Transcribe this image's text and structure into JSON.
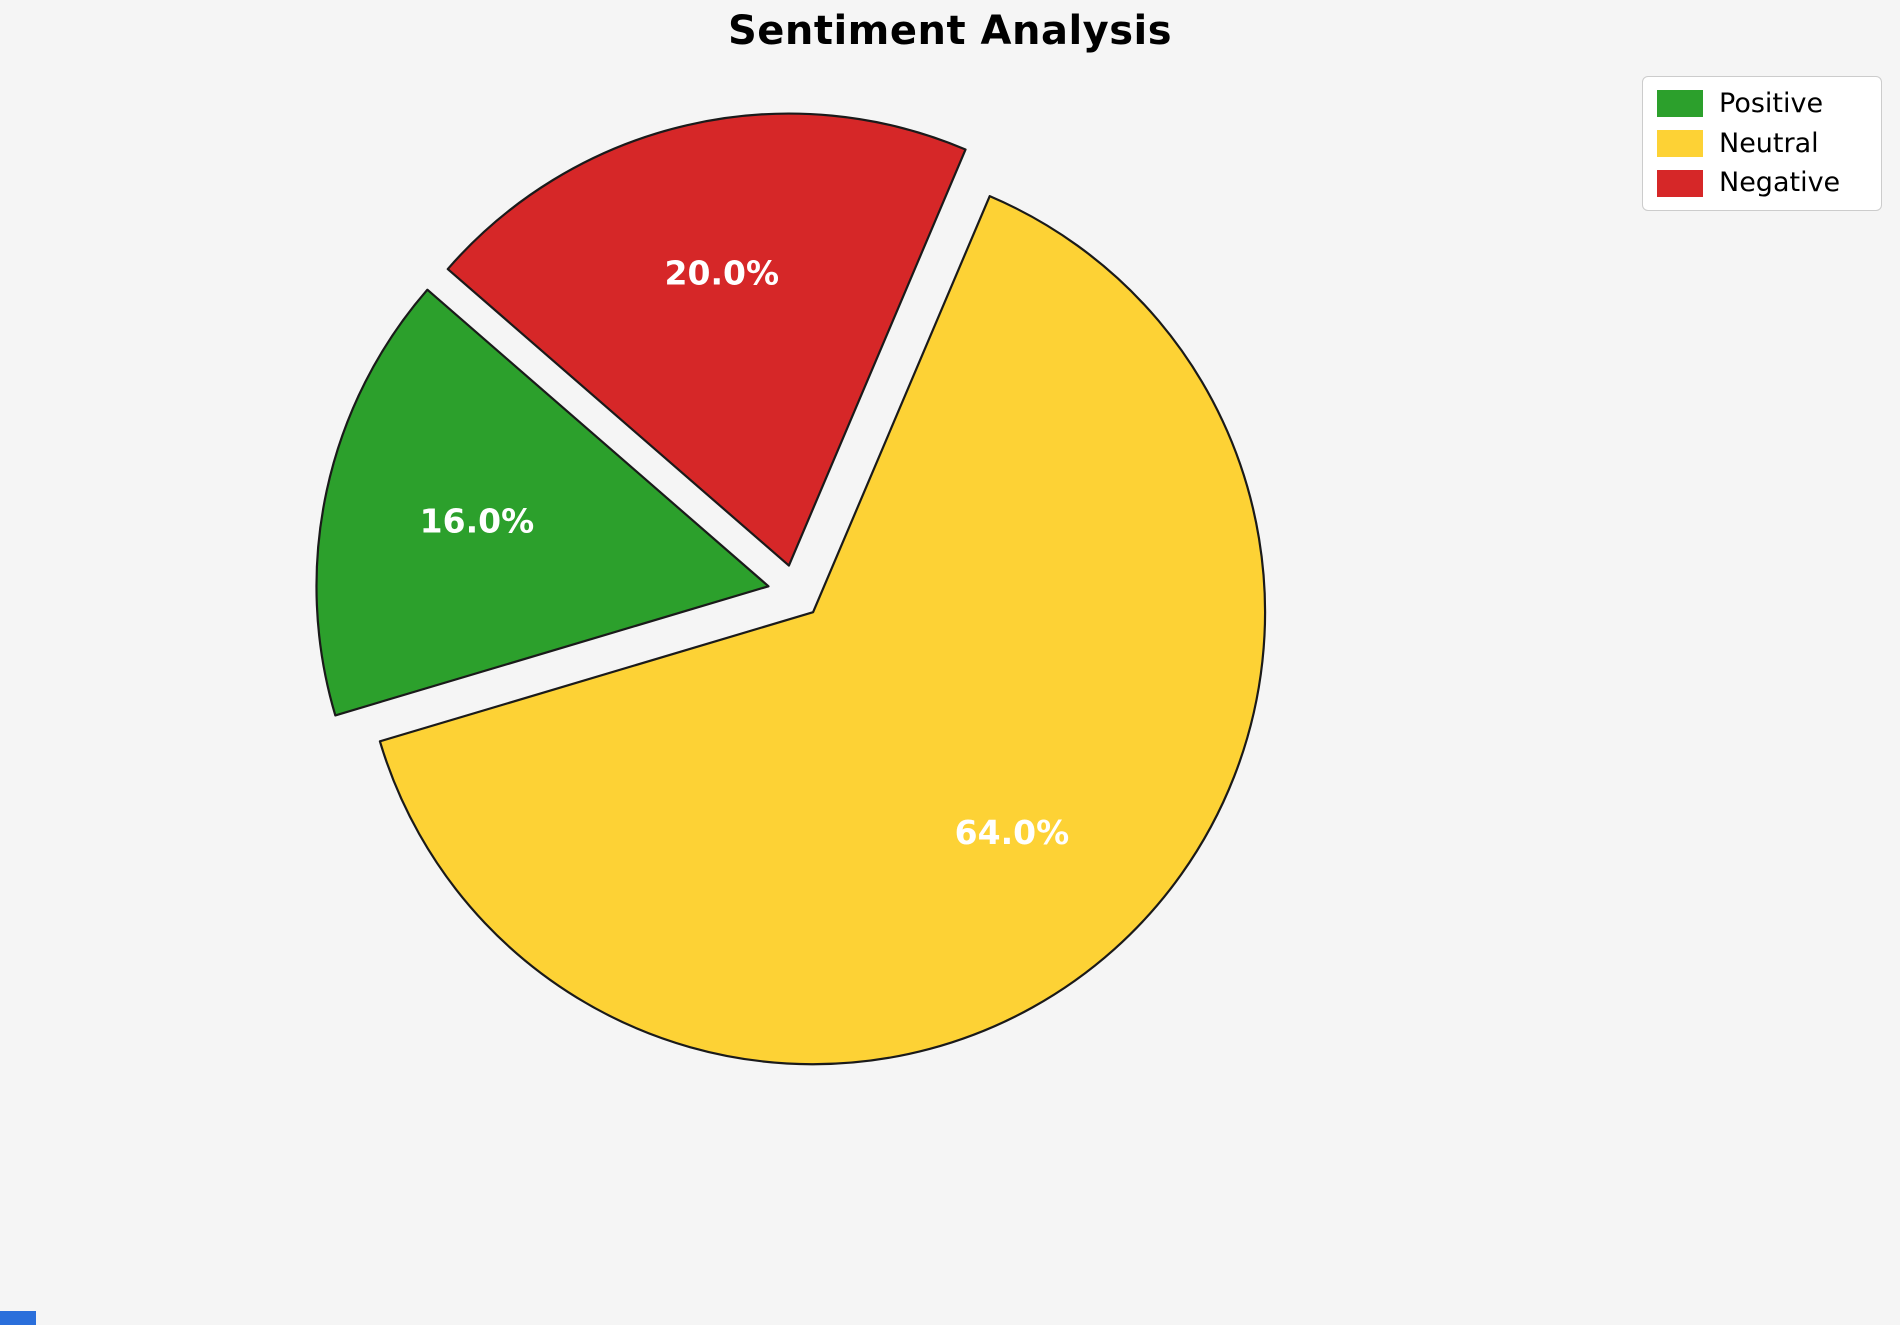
{
  "chart_data": {
    "type": "pie",
    "title": "Sentiment Analysis",
    "categories": [
      "Positive",
      "Neutral",
      "Negative"
    ],
    "values": [
      16.0,
      64.0,
      20.0
    ],
    "slices": [
      {
        "label": "Positive",
        "value": 16.0,
        "pct_label": "16.0%",
        "color": "#2ca02c"
      },
      {
        "label": "Neutral",
        "value": 64.0,
        "pct_label": "64.0%",
        "color": "#fdd235"
      },
      {
        "label": "Negative",
        "value": 20.0,
        "pct_label": "20.0%",
        "color": "#d62728"
      }
    ],
    "start_angle": 139,
    "direction": "counterclockwise",
    "explode": 0.06,
    "slice_edge_color": "#1a1a1a",
    "pct_label_color": "#ffffff",
    "legend_position": "upper-right",
    "legend_labels": [
      "Positive",
      "Neutral",
      "Negative"
    ],
    "background": "#f5f5f5"
  },
  "accents": {
    "bottom_left_bar_color": "#2a6fdb"
  }
}
